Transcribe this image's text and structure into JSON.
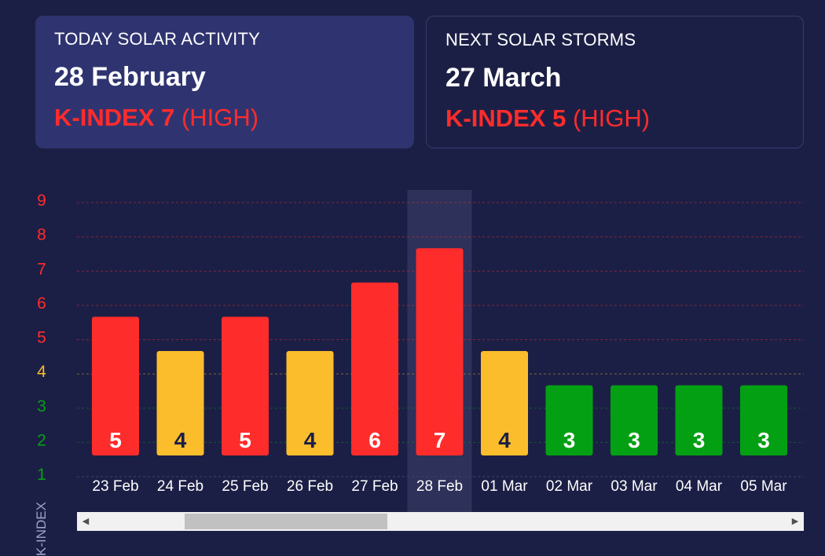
{
  "today": {
    "heading": "TODAY SOLAR ACTIVITY",
    "date": "28 February",
    "kindex_label": "K-INDEX 7",
    "level": "(HIGH)"
  },
  "next": {
    "heading": "NEXT SOLAR STORMS",
    "date": "27 March",
    "kindex_label": "K-INDEX 5",
    "level": "(HIGH)"
  },
  "colors": {
    "background": "#1c1f45",
    "high": "#ff2c2c",
    "medium": "#fbbd2c",
    "low": "#04a014",
    "highlight": "#2e3159"
  },
  "chart_data": {
    "type": "bar",
    "ylabel": "K-INDEX",
    "ylim": [
      1,
      9
    ],
    "yticks": [
      "1",
      "2",
      "3",
      "4",
      "5",
      "6",
      "7",
      "8",
      "9"
    ],
    "grid": true,
    "highlighted_category": "28 Feb",
    "categories": [
      "23 Feb",
      "24 Feb",
      "25 Feb",
      "26 Feb",
      "27 Feb",
      "28 Feb",
      "01 Mar",
      "02 Mar",
      "03 Mar",
      "04 Mar",
      "05 Mar"
    ],
    "values": [
      5,
      4,
      5,
      4,
      6,
      7,
      4,
      3,
      3,
      3,
      3
    ]
  }
}
